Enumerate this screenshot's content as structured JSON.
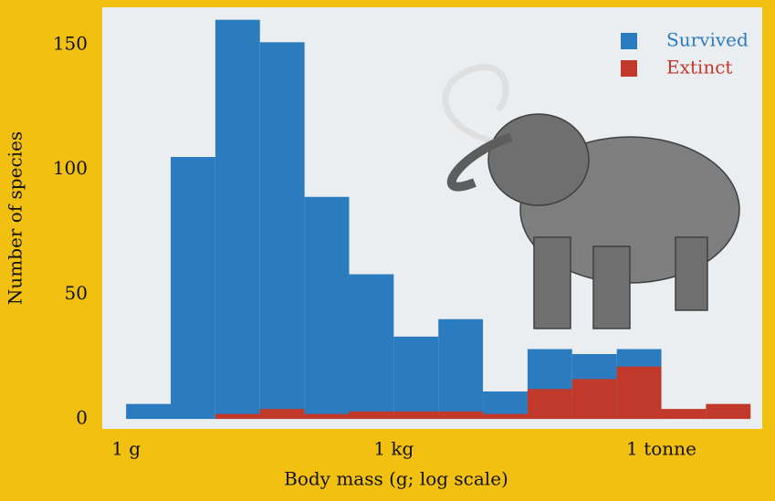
{
  "chart_data": {
    "type": "histogram",
    "x_label": "Body mass (g; log scale)",
    "y_label": "Number of species",
    "log_x": true,
    "bins": [
      1,
      3.162,
      10,
      31.62,
      100,
      316.2,
      1000,
      3162,
      10000,
      31620,
      100000,
      316200,
      1000000,
      3162000,
      10000000
    ],
    "series": [
      {
        "name": "Survived",
        "color": "#2b7bbf",
        "values": [
          6,
          105,
          160,
          151,
          89,
          58,
          33,
          40,
          11,
          28,
          26,
          28,
          0,
          0
        ]
      },
      {
        "name": "Extinct",
        "color": "#c0392b",
        "values": [
          0,
          0,
          2,
          4,
          2,
          3,
          3,
          3,
          2,
          12,
          16,
          21,
          4,
          6
        ]
      }
    ],
    "xlim": [
      0.54,
      13500000
    ],
    "ylim": [
      -4,
      165
    ],
    "xticks": [
      {
        "value": 1,
        "label": "1 g"
      },
      {
        "value": 1000,
        "label": "1 kg"
      },
      {
        "value": 1000000,
        "label": "1 tonne"
      }
    ],
    "yticks": [
      0,
      50,
      100,
      150
    ],
    "legend": "top-right"
  }
}
